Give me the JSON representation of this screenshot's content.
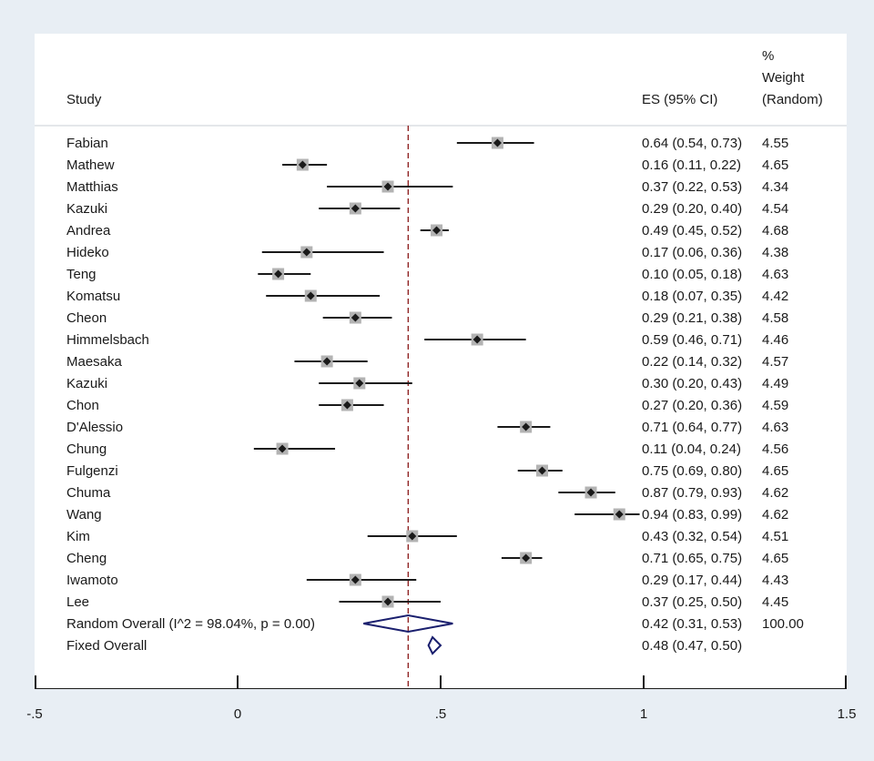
{
  "chart_data": {
    "type": "forest",
    "headers": {
      "study": "Study",
      "es": "ES (95% CI)",
      "weight_line1": "%",
      "weight_line2": "Weight",
      "weight_line3": "(Random)"
    },
    "studies": [
      {
        "name": "Fabian",
        "es": 0.64,
        "lo": 0.54,
        "hi": 0.73,
        "es_text": "0.64 (0.54, 0.73)",
        "weight": "4.55"
      },
      {
        "name": "Mathew",
        "es": 0.16,
        "lo": 0.11,
        "hi": 0.22,
        "es_text": "0.16 (0.11, 0.22)",
        "weight": "4.65"
      },
      {
        "name": "Matthias",
        "es": 0.37,
        "lo": 0.22,
        "hi": 0.53,
        "es_text": "0.37 (0.22, 0.53)",
        "weight": "4.34"
      },
      {
        "name": "Kazuki",
        "es": 0.29,
        "lo": 0.2,
        "hi": 0.4,
        "es_text": "0.29 (0.20, 0.40)",
        "weight": "4.54"
      },
      {
        "name": "Andrea",
        "es": 0.49,
        "lo": 0.45,
        "hi": 0.52,
        "es_text": "0.49 (0.45, 0.52)",
        "weight": "4.68"
      },
      {
        "name": "Hideko",
        "es": 0.17,
        "lo": 0.06,
        "hi": 0.36,
        "es_text": "0.17 (0.06, 0.36)",
        "weight": "4.38"
      },
      {
        "name": "Teng",
        "es": 0.1,
        "lo": 0.05,
        "hi": 0.18,
        "es_text": "0.10 (0.05, 0.18)",
        "weight": "4.63"
      },
      {
        "name": "Komatsu",
        "es": 0.18,
        "lo": 0.07,
        "hi": 0.35,
        "es_text": "0.18 (0.07, 0.35)",
        "weight": "4.42"
      },
      {
        "name": "Cheon",
        "es": 0.29,
        "lo": 0.21,
        "hi": 0.38,
        "es_text": "0.29 (0.21, 0.38)",
        "weight": "4.58"
      },
      {
        "name": "Himmelsbach",
        "es": 0.59,
        "lo": 0.46,
        "hi": 0.71,
        "es_text": "0.59 (0.46, 0.71)",
        "weight": "4.46"
      },
      {
        "name": "Maesaka",
        "es": 0.22,
        "lo": 0.14,
        "hi": 0.32,
        "es_text": "0.22 (0.14, 0.32)",
        "weight": "4.57"
      },
      {
        "name": "Kazuki",
        "es": 0.3,
        "lo": 0.2,
        "hi": 0.43,
        "es_text": "0.30 (0.20, 0.43)",
        "weight": "4.49"
      },
      {
        "name": "Chon",
        "es": 0.27,
        "lo": 0.2,
        "hi": 0.36,
        "es_text": "0.27 (0.20, 0.36)",
        "weight": "4.59"
      },
      {
        "name": "D'Alessio",
        "es": 0.71,
        "lo": 0.64,
        "hi": 0.77,
        "es_text": "0.71 (0.64, 0.77)",
        "weight": "4.63"
      },
      {
        "name": "Chung",
        "es": 0.11,
        "lo": 0.04,
        "hi": 0.24,
        "es_text": "0.11 (0.04, 0.24)",
        "weight": "4.56"
      },
      {
        "name": "Fulgenzi",
        "es": 0.75,
        "lo": 0.69,
        "hi": 0.8,
        "es_text": "0.75 (0.69, 0.80)",
        "weight": "4.65"
      },
      {
        "name": "Chuma",
        "es": 0.87,
        "lo": 0.79,
        "hi": 0.93,
        "es_text": "0.87 (0.79, 0.93)",
        "weight": "4.62"
      },
      {
        "name": "Wang",
        "es": 0.94,
        "lo": 0.83,
        "hi": 0.99,
        "es_text": "0.94 (0.83, 0.99)",
        "weight": "4.62"
      },
      {
        "name": "Kim",
        "es": 0.43,
        "lo": 0.32,
        "hi": 0.54,
        "es_text": "0.43 (0.32, 0.54)",
        "weight": "4.51"
      },
      {
        "name": "Cheng",
        "es": 0.71,
        "lo": 0.65,
        "hi": 0.75,
        "es_text": "0.71 (0.65, 0.75)",
        "weight": "4.65"
      },
      {
        "name": "Iwamoto",
        "es": 0.29,
        "lo": 0.17,
        "hi": 0.44,
        "es_text": "0.29 (0.17, 0.44)",
        "weight": "4.43"
      },
      {
        "name": "Lee",
        "es": 0.37,
        "lo": 0.25,
        "hi": 0.5,
        "es_text": "0.37 (0.25, 0.50)",
        "weight": "4.45"
      }
    ],
    "overall": [
      {
        "label": "Random Overall  (I^2 = 98.04%, p = 0.00)",
        "es": 0.42,
        "lo": 0.31,
        "hi": 0.53,
        "es_text": "0.42 (0.31, 0.53)",
        "weight": "100.00"
      },
      {
        "label": "Fixed Overall",
        "es": 0.48,
        "lo": 0.47,
        "hi": 0.5,
        "es_text": "0.48 (0.47, 0.50)",
        "weight": ""
      }
    ],
    "reference_line": 0.42,
    "xlim": [
      -0.5,
      1.5
    ],
    "xticks": [
      -0.5,
      0,
      0.5,
      1,
      1.5
    ],
    "xtick_labels": [
      "-.5",
      "0",
      ".5",
      "1",
      "1.5"
    ],
    "colors": {
      "point": "#1a1a1a",
      "weight_box": "#b3b3b3",
      "diamond": "#1a1f6e",
      "reference": "#8b1a1a",
      "axis": "#1a1a1a",
      "divider": "#c8cfd6"
    }
  }
}
